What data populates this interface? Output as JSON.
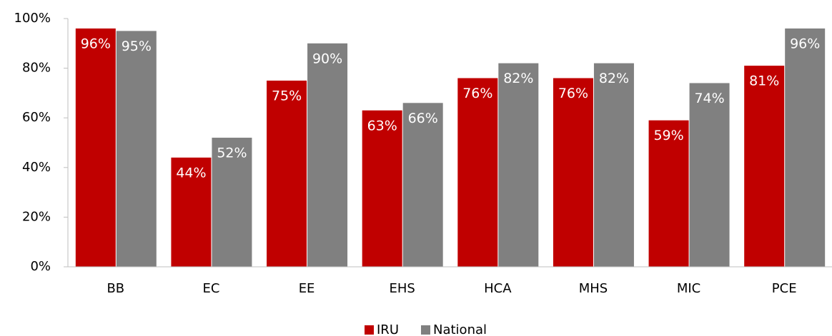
{
  "chart_data": {
    "type": "bar",
    "categories": [
      "BB",
      "EC",
      "EE",
      "EHS",
      "HCA",
      "MHS",
      "MIC",
      "PCE"
    ],
    "series": [
      {
        "name": "IRU",
        "color": "#c00000",
        "values": [
          96,
          44,
          75,
          63,
          76,
          76,
          59,
          81
        ],
        "value_labels": [
          "96%",
          "44%",
          "75%",
          "63%",
          "76%",
          "76%",
          "59%",
          "81%"
        ]
      },
      {
        "name": "National",
        "color": "#808080",
        "values": [
          95,
          52,
          90,
          66,
          82,
          82,
          74,
          96
        ],
        "value_labels": [
          "95%",
          "52%",
          "90%",
          "66%",
          "82%",
          "82%",
          "74%",
          "96%"
        ]
      }
    ],
    "ylim": [
      0,
      100
    ],
    "yticks": [
      {
        "value": 0,
        "label": "0%"
      },
      {
        "value": 20,
        "label": "20%"
      },
      {
        "value": 40,
        "label": "40%"
      },
      {
        "value": 60,
        "label": "60%"
      },
      {
        "value": 80,
        "label": "80%"
      },
      {
        "value": 100,
        "label": "100%"
      }
    ],
    "grid": false,
    "legend": "bottom"
  }
}
